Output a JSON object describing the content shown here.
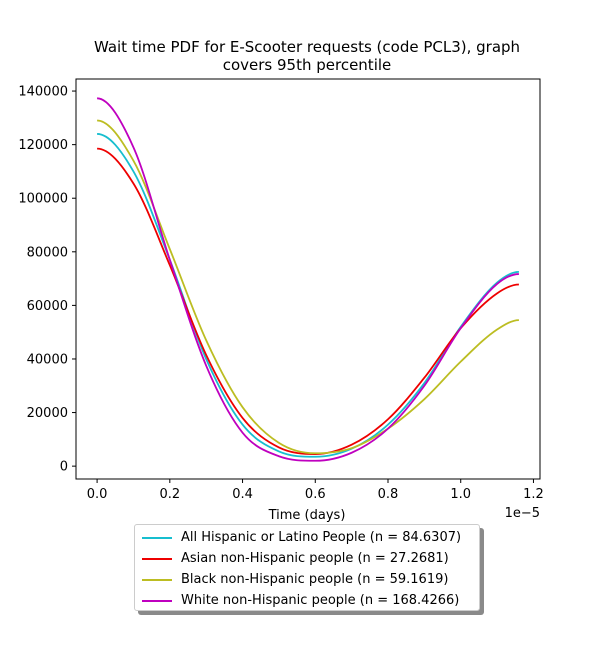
{
  "chart_data": {
    "type": "line",
    "title": "Wait time PDF for E-Scooter  requests (code PCL3), graph covers 95th percentile",
    "title_lines": [
      "Wait time PDF for E-Scooter  requests (code PCL3), graph",
      "covers 95th percentile"
    ],
    "xlabel": "Time (days)",
    "x_offset_text": "1e−5",
    "x_tick_labels": [
      "0.0",
      "0.2",
      "0.4",
      "0.6",
      "0.8",
      "1.0",
      "1.2"
    ],
    "x_ticks": [
      0.0,
      0.2,
      0.4,
      0.6,
      0.8,
      1.0,
      1.2
    ],
    "y_tick_labels": [
      "0",
      "20000",
      "40000",
      "60000",
      "80000",
      "100000",
      "120000",
      "140000"
    ],
    "y_ticks": [
      0,
      20000,
      40000,
      60000,
      80000,
      100000,
      120000,
      140000
    ],
    "xlim": [
      -0.058,
      1.218
    ],
    "ylim": [
      -4800,
      144500
    ],
    "grid": false,
    "legend_position": "below",
    "series": [
      {
        "name": "All Hispanic or Latino People (n = 84.6307)",
        "color": "#17becf",
        "x": [
          0.0,
          0.1,
          0.2,
          0.3,
          0.4,
          0.5,
          0.6,
          0.7,
          0.8,
          0.9,
          1.0,
          1.1,
          1.16
        ],
        "y": [
          124000,
          110000,
          77000,
          40000,
          15500,
          5500,
          3500,
          6500,
          15500,
          31000,
          52000,
          68500,
          72500
        ]
      },
      {
        "name": "Asian non-Hispanic people (n = 27.2681)",
        "color": "#ee0000",
        "x": [
          0.0,
          0.1,
          0.2,
          0.3,
          0.4,
          0.5,
          0.6,
          0.7,
          0.8,
          0.9,
          1.0,
          1.1,
          1.16
        ],
        "y": [
          118500,
          105500,
          75000,
          41500,
          18000,
          7000,
          4500,
          8000,
          17500,
          33000,
          51500,
          64500,
          67800
        ]
      },
      {
        "name": "Black non-Hispanic people (n = 59.1619)",
        "color": "#bcbd22",
        "x": [
          0.0,
          0.1,
          0.2,
          0.3,
          0.4,
          0.5,
          0.6,
          0.7,
          0.8,
          0.9,
          1.0,
          1.1,
          1.16
        ],
        "y": [
          129000,
          114000,
          81000,
          47000,
          22000,
          8700,
          4800,
          6700,
          14000,
          25000,
          39000,
          51000,
          54500
        ]
      },
      {
        "name": "White non-Hispanic people (n = 168.4266)",
        "color": "#bf00bf",
        "x": [
          0.0,
          0.1,
          0.2,
          0.3,
          0.4,
          0.5,
          0.6,
          0.7,
          0.8,
          0.9,
          1.0,
          1.1,
          1.16
        ],
        "y": [
          137300,
          119000,
          77000,
          37500,
          12500,
          3700,
          2000,
          5000,
          14000,
          30000,
          51500,
          68000,
          71700
        ]
      }
    ]
  }
}
